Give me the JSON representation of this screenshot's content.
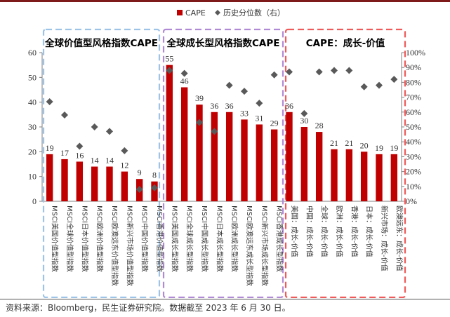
{
  "chart_data": {
    "type": "bar",
    "legend": [
      "CAPE",
      "历史分位数（右）"
    ],
    "legend_position": "top-center",
    "categories": [
      "MSCI美国价值型指数",
      "MSCI全球价值型指数",
      "MSCI日本价值型指数",
      "MSCI欧洲价值型指数",
      "MSCI欧澳远东价值型指数",
      "MSCI新兴市场价值型指数",
      "MSCI中国价值型指数",
      "MSCI香港价值型指数",
      "MSCI美国成长型指数",
      "MSCI全球成长型指数",
      "MSCI中国成长型指数",
      "MSCI日本成长型指数",
      "MSCI欧洲成长型指数",
      "MSCI欧澳远东成长型指数",
      "MSCI新兴市场成长型指数",
      "MSCI香港成长型指数",
      "美国：成长-价值",
      "中国：成长-价值",
      "全球：成长-价值",
      "欧洲：成长-价值",
      "香港：成长-价值",
      "日本：成长-价值",
      "新兴市场：成长-价值",
      "欧澳远东：成长-价值"
    ],
    "series": [
      {
        "name": "CAPE",
        "type": "bar",
        "axis": "left",
        "color": "#c00000",
        "values": [
          19,
          17,
          16,
          14,
          14,
          12,
          9,
          8,
          55,
          46,
          39,
          36,
          36,
          33,
          31,
          29,
          36,
          30,
          28,
          21,
          21,
          20,
          19,
          19
        ]
      },
      {
        "name": "历史分位数（右）",
        "type": "scatter",
        "axis": "right",
        "color": "#595959",
        "values": [
          0.67,
          0.58,
          0.37,
          0.5,
          0.47,
          0.34,
          0.08,
          0.09,
          0.88,
          0.86,
          0.53,
          0.47,
          0.78,
          0.74,
          0.66,
          0.85,
          0.87,
          0.59,
          0.87,
          0.88,
          0.88,
          0.77,
          0.78,
          0.82
        ]
      }
    ],
    "y_left": {
      "range": [
        0,
        60
      ],
      "ticks": [
        "0",
        "10",
        "20",
        "30",
        "40",
        "50",
        "60"
      ]
    },
    "y_right": {
      "range": [
        0,
        1
      ],
      "ticks": [
        "0%",
        "10%",
        "20%",
        "30%",
        "40%",
        "50%",
        "60%",
        "70%",
        "80%",
        "90%",
        "100%"
      ]
    },
    "groups": [
      {
        "title": "全球价值型风格指数CAPE",
        "color": "#9dc3e6"
      },
      {
        "title": "全球成长型风格指数CAPE",
        "color": "#b18ad6"
      },
      {
        "title": "CAPE：成长-价值",
        "color": "#ef5b5b"
      }
    ]
  },
  "footer": "资料来源：Bloomberg，民生证券研究院。数据截至 2023 年 6 月 30 日。"
}
